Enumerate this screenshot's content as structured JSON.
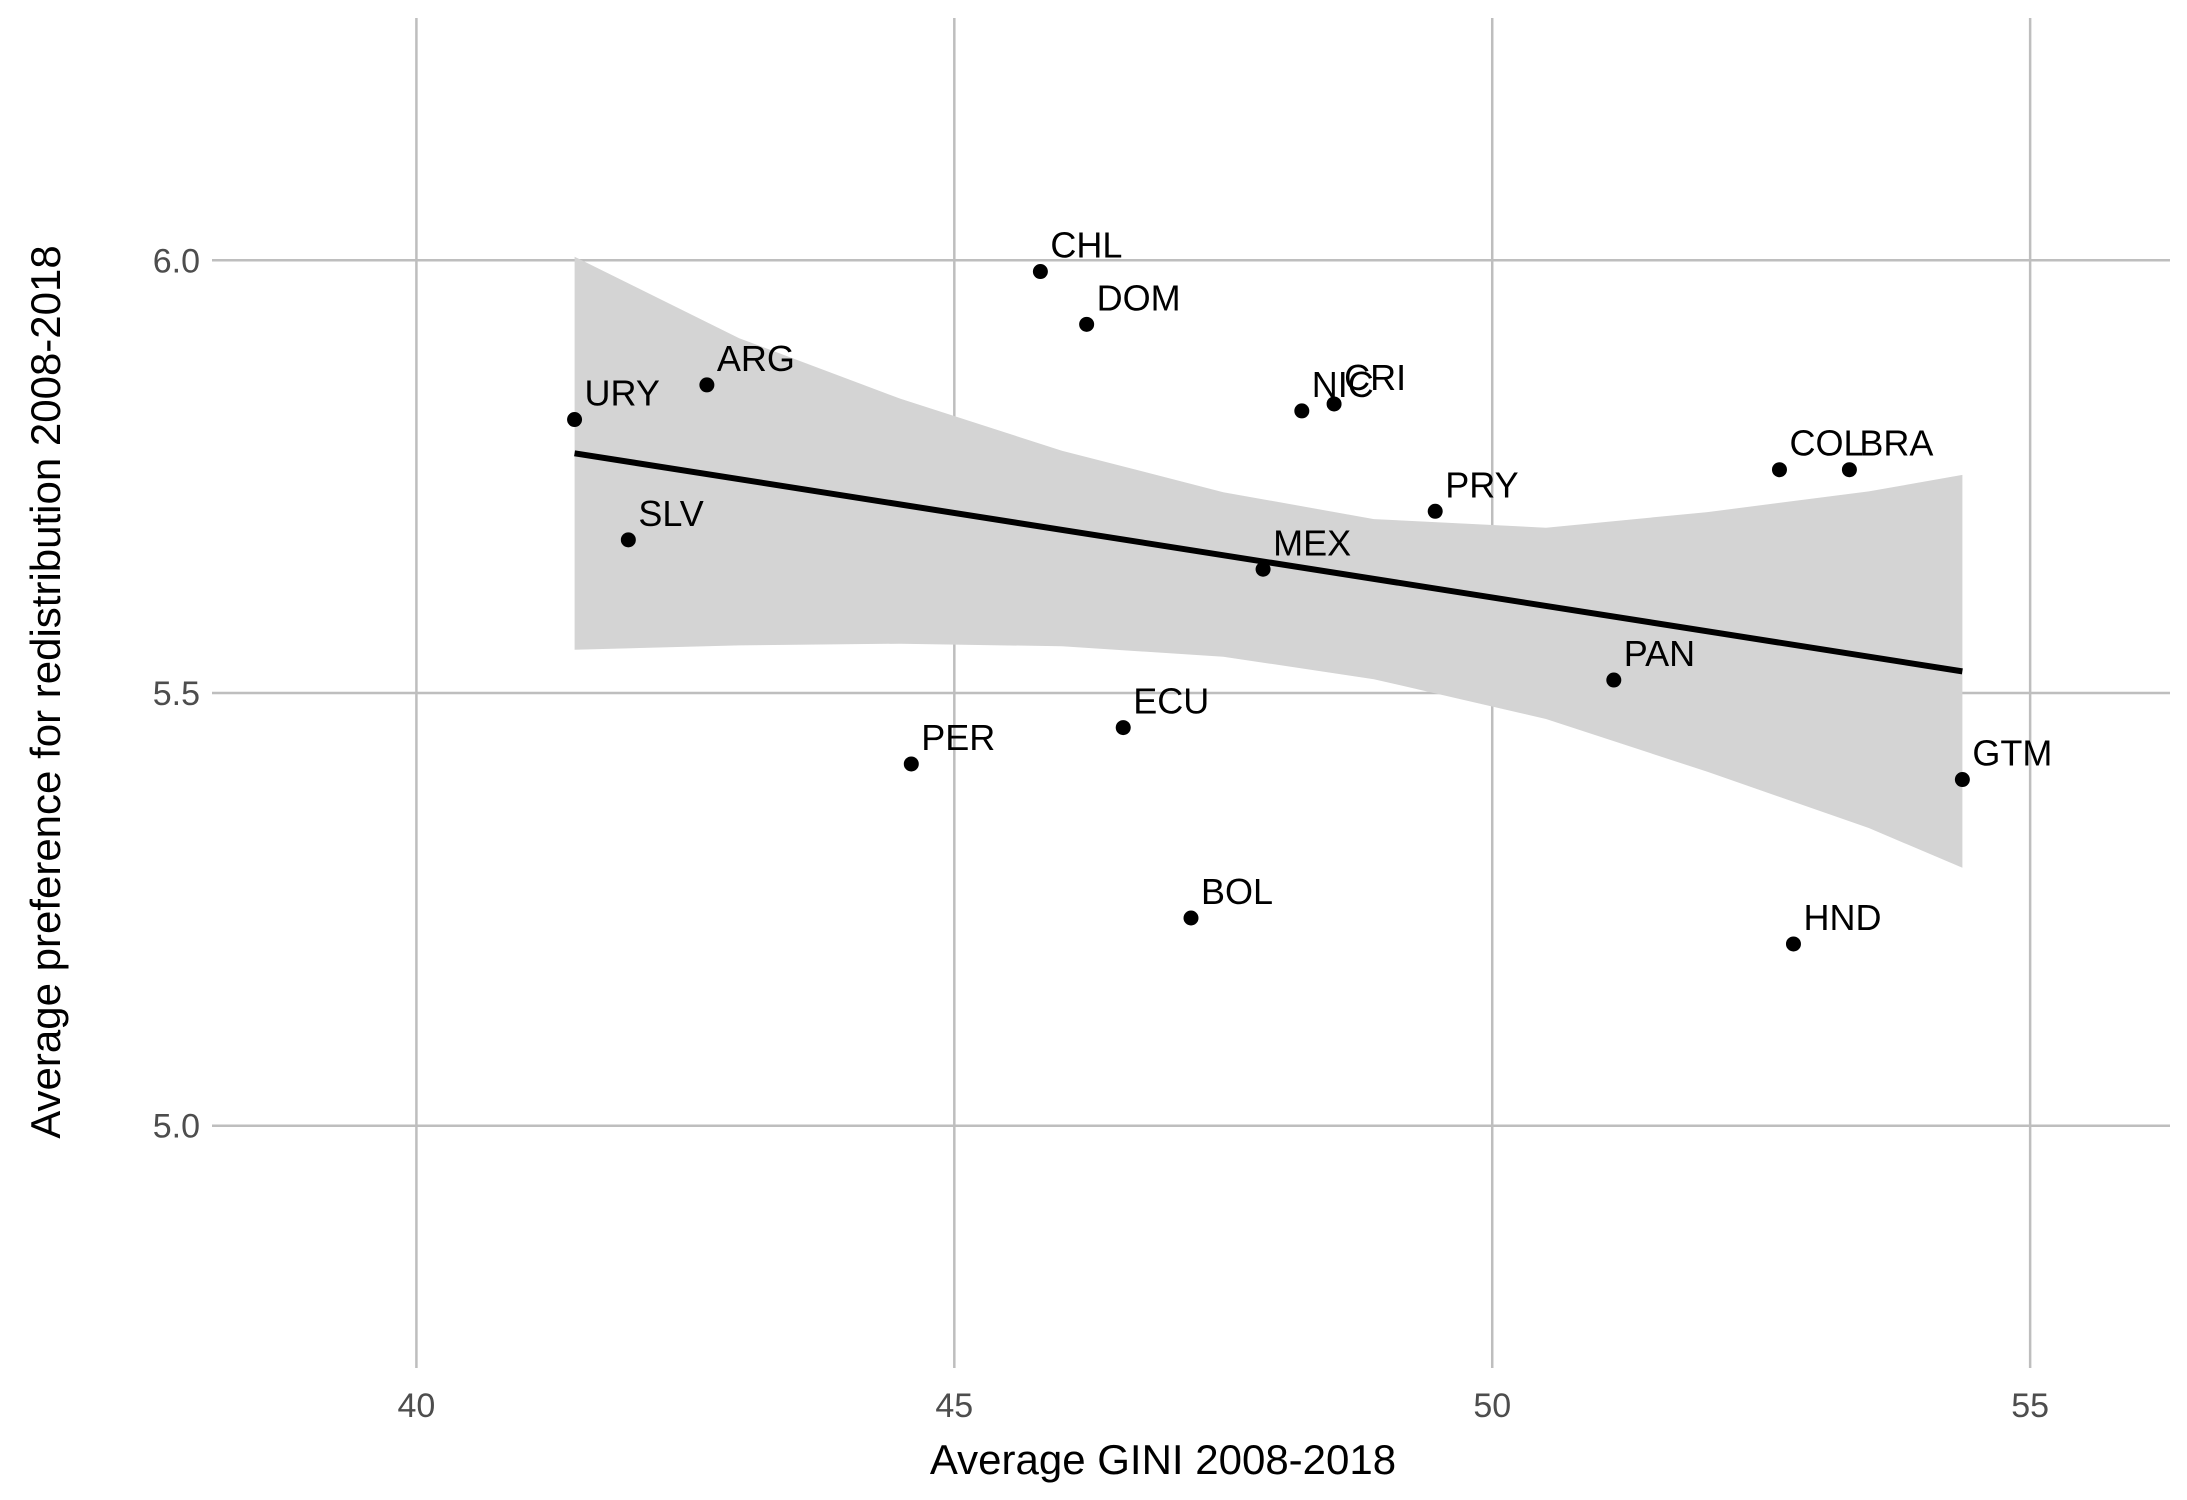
{
  "chart_data": {
    "type": "scatter",
    "title": "",
    "xlabel": "Average GINI 2008-2018",
    "ylabel": "Average preference for redistribution 2008-2018",
    "xlim": [
      38.1,
      56.3
    ],
    "ylim": [
      4.72,
      6.28
    ],
    "x_ticks": [
      40,
      45,
      50,
      55
    ],
    "x_tick_labels": [
      "40",
      "45",
      "50",
      "55"
    ],
    "y_ticks": [
      5.0,
      5.5,
      6.0
    ],
    "y_tick_labels": [
      "5.0",
      "5.5",
      "6.0"
    ],
    "grid": true,
    "legend": "none",
    "points": [
      {
        "label": "URY",
        "x": 41.47,
        "y": 5.816
      },
      {
        "label": "ARG",
        "x": 42.7,
        "y": 5.856
      },
      {
        "label": "SLV",
        "x": 41.97,
        "y": 5.677
      },
      {
        "label": "PER",
        "x": 44.6,
        "y": 5.418
      },
      {
        "label": "CHL",
        "x": 45.8,
        "y": 5.987
      },
      {
        "label": "DOM",
        "x": 46.23,
        "y": 5.926
      },
      {
        "label": "ECU",
        "x": 46.57,
        "y": 5.46
      },
      {
        "label": "BOL",
        "x": 47.2,
        "y": 5.24
      },
      {
        "label": "MEX",
        "x": 47.87,
        "y": 5.643
      },
      {
        "label": "NIC",
        "x": 48.23,
        "y": 5.826
      },
      {
        "label": "CRI",
        "x": 48.53,
        "y": 5.834
      },
      {
        "label": "PRY",
        "x": 49.47,
        "y": 5.71
      },
      {
        "label": "PAN",
        "x": 51.13,
        "y": 5.515
      },
      {
        "label": "COL",
        "x": 52.67,
        "y": 5.758
      },
      {
        "label": "BRA",
        "x": 53.32,
        "y": 5.758
      },
      {
        "label": "HND",
        "x": 52.8,
        "y": 5.21
      },
      {
        "label": "GTM",
        "x": 54.37,
        "y": 5.4
      }
    ],
    "fit_line": {
      "method": "linear",
      "x": [
        41.47,
        54.37
      ],
      "y": [
        5.777,
        5.525
      ]
    },
    "confidence_band": {
      "x": [
        41.47,
        43.0,
        44.5,
        46.0,
        47.5,
        48.9,
        50.5,
        52.0,
        53.5,
        54.37
      ],
      "upper": [
        6.004,
        5.91,
        5.84,
        5.78,
        5.732,
        5.701,
        5.691,
        5.709,
        5.733,
        5.752
      ],
      "lower": [
        5.55,
        5.555,
        5.557,
        5.554,
        5.542,
        5.516,
        5.47,
        5.409,
        5.344,
        5.298
      ]
    },
    "colors": {
      "point": "#000000",
      "fit_line": "#000000",
      "confidence_band": "#d4d4d4",
      "grid": "#bebebe",
      "background": "#ffffff",
      "tick_label": "#4d4d4d"
    }
  }
}
